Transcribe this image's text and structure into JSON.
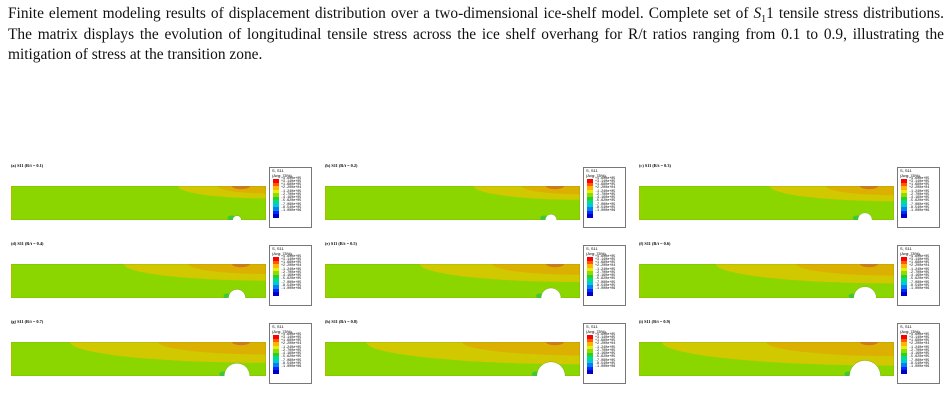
{
  "caption": {
    "part1": "Finite element modeling results of displacement distribution over a two-dimensional ice-shelf model. Complete set of ",
    "symbol": "S",
    "subscript": "1",
    "part2": "1 tensile stress distributions. The matrix displays the evolution of longitudinal tensile stress across the ice shelf overhang for R/t ratios ranging from 0.1 to 0.9, illustrating the mitigation of stress at the transition zone."
  },
  "legend": {
    "line1": "S, S11",
    "line2": "(Avg: 75%)",
    "values": [
      "+4.600e+05",
      "+3.140e+05",
      "+1.680e+05",
      "+2.200e+04",
      "-1.240e+05",
      "-2.700e+05",
      "-4.160e+05",
      "-5.620e+05",
      "-7.080e+05",
      "-8.540e+05",
      "-1.000e+06"
    ],
    "colors": [
      "#ff0000",
      "#ff5a00",
      "#ffb400",
      "#e6f000",
      "#8cdc00",
      "#28d21e",
      "#00dc8c",
      "#00c8dc",
      "#0082f0",
      "#0028ff",
      "#0000c8"
    ]
  },
  "panels": [
    {
      "title": "(a) S11 (R/t = 0.1)",
      "ratio": 0.1
    },
    {
      "title": "(b) S11 (R/t = 0.2)",
      "ratio": 0.2
    },
    {
      "title": "(c) S11 (R/t = 0.3)",
      "ratio": 0.3
    },
    {
      "title": "(d) S11 (R/t = 0.4)",
      "ratio": 0.4
    },
    {
      "title": "(e) S11 (R/t = 0.5)",
      "ratio": 0.5
    },
    {
      "title": "(f) S11 (R/t = 0.6)",
      "ratio": 0.6
    },
    {
      "title": "(g) S11 (R/t = 0.7)",
      "ratio": 0.7
    },
    {
      "title": "(h) S11 (R/t = 0.8)",
      "ratio": 0.8
    },
    {
      "title": "(i) S11 (R/t = 0.9)",
      "ratio": 0.9
    }
  ]
}
